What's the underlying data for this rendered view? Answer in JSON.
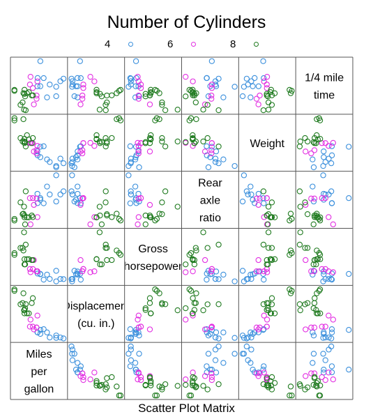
{
  "title": "Number of Cylinders",
  "subtitle": "Scatter Plot Matrix",
  "legend": [
    {
      "label": "4",
      "color": "#3a8fdc"
    },
    {
      "label": "6",
      "color": "#e22ee2"
    },
    {
      "label": "8",
      "color": "#1f7a1f"
    }
  ],
  "chart_data": {
    "type": "scatter",
    "title": "Number of Cylinders",
    "subtitle": "Scatter Plot Matrix",
    "variables": [
      {
        "key": "mpg",
        "label": [
          "Miles",
          "per",
          "gallon"
        ]
      },
      {
        "key": "disp",
        "label": [
          "Displacement",
          "(cu. in.)"
        ]
      },
      {
        "key": "hp",
        "label": [
          "Gross",
          "horsepower"
        ]
      },
      {
        "key": "drat",
        "label": [
          "Rear",
          "axle",
          "ratio"
        ]
      },
      {
        "key": "wt",
        "label": [
          "Weight"
        ]
      },
      {
        "key": "qsec",
        "label": [
          "1/4 mile",
          "time"
        ]
      }
    ],
    "groups": [
      "4",
      "6",
      "8"
    ],
    "grid": false,
    "legend_position": "top",
    "series": [
      {
        "name": "4",
        "cyl": 4,
        "color": "#3a8fdc",
        "points": [
          {
            "mpg": 22.8,
            "disp": 108.0,
            "hp": 93,
            "drat": 3.85,
            "wt": 2.32,
            "qsec": 18.61
          },
          {
            "mpg": 24.4,
            "disp": 146.7,
            "hp": 62,
            "drat": 3.69,
            "wt": 3.19,
            "qsec": 20.0
          },
          {
            "mpg": 22.8,
            "disp": 140.8,
            "hp": 95,
            "drat": 3.92,
            "wt": 3.15,
            "qsec": 22.9
          },
          {
            "mpg": 32.4,
            "disp": 78.7,
            "hp": 66,
            "drat": 4.08,
            "wt": 2.2,
            "qsec": 19.47
          },
          {
            "mpg": 30.4,
            "disp": 75.7,
            "hp": 52,
            "drat": 4.93,
            "wt": 1.615,
            "qsec": 18.52
          },
          {
            "mpg": 33.9,
            "disp": 71.1,
            "hp": 65,
            "drat": 4.22,
            "wt": 1.835,
            "qsec": 19.9
          },
          {
            "mpg": 21.5,
            "disp": 120.1,
            "hp": 97,
            "drat": 3.7,
            "wt": 2.465,
            "qsec": 20.01
          },
          {
            "mpg": 27.3,
            "disp": 79.0,
            "hp": 66,
            "drat": 4.08,
            "wt": 1.935,
            "qsec": 18.9
          },
          {
            "mpg": 26.0,
            "disp": 120.3,
            "hp": 91,
            "drat": 4.43,
            "wt": 2.14,
            "qsec": 16.7
          },
          {
            "mpg": 30.4,
            "disp": 95.1,
            "hp": 113,
            "drat": 3.77,
            "wt": 1.513,
            "qsec": 16.9
          },
          {
            "mpg": 21.4,
            "disp": 121.0,
            "hp": 109,
            "drat": 4.11,
            "wt": 2.78,
            "qsec": 18.6
          }
        ]
      },
      {
        "name": "6",
        "cyl": 6,
        "color": "#e22ee2",
        "points": [
          {
            "mpg": 21.0,
            "disp": 160.0,
            "hp": 110,
            "drat": 3.9,
            "wt": 2.62,
            "qsec": 16.46
          },
          {
            "mpg": 21.0,
            "disp": 160.0,
            "hp": 110,
            "drat": 3.9,
            "wt": 2.875,
            "qsec": 17.02
          },
          {
            "mpg": 21.4,
            "disp": 258.0,
            "hp": 110,
            "drat": 3.08,
            "wt": 3.215,
            "qsec": 19.44
          },
          {
            "mpg": 18.1,
            "disp": 225.0,
            "hp": 105,
            "drat": 2.76,
            "wt": 3.46,
            "qsec": 20.22
          },
          {
            "mpg": 19.2,
            "disp": 167.6,
            "hp": 123,
            "drat": 3.92,
            "wt": 3.44,
            "qsec": 18.3
          },
          {
            "mpg": 17.8,
            "disp": 167.6,
            "hp": 123,
            "drat": 3.92,
            "wt": 3.44,
            "qsec": 18.9
          },
          {
            "mpg": 19.7,
            "disp": 145.0,
            "hp": 175,
            "drat": 3.62,
            "wt": 2.77,
            "qsec": 15.5
          }
        ]
      },
      {
        "name": "8",
        "cyl": 8,
        "color": "#1f7a1f",
        "points": [
          {
            "mpg": 18.7,
            "disp": 360.0,
            "hp": 175,
            "drat": 3.15,
            "wt": 3.44,
            "qsec": 17.02
          },
          {
            "mpg": 14.3,
            "disp": 360.0,
            "hp": 245,
            "drat": 3.21,
            "wt": 3.57,
            "qsec": 15.84
          },
          {
            "mpg": 16.4,
            "disp": 275.8,
            "hp": 180,
            "drat": 3.07,
            "wt": 4.07,
            "qsec": 17.4
          },
          {
            "mpg": 17.3,
            "disp": 275.8,
            "hp": 180,
            "drat": 3.07,
            "wt": 3.73,
            "qsec": 17.6
          },
          {
            "mpg": 15.2,
            "disp": 275.8,
            "hp": 180,
            "drat": 3.07,
            "wt": 3.78,
            "qsec": 18.0
          },
          {
            "mpg": 10.4,
            "disp": 472.0,
            "hp": 205,
            "drat": 2.93,
            "wt": 5.25,
            "qsec": 17.98
          },
          {
            "mpg": 10.4,
            "disp": 460.0,
            "hp": 215,
            "drat": 3.0,
            "wt": 5.424,
            "qsec": 17.82
          },
          {
            "mpg": 14.7,
            "disp": 440.0,
            "hp": 230,
            "drat": 3.23,
            "wt": 5.345,
            "qsec": 17.42
          },
          {
            "mpg": 15.5,
            "disp": 318.0,
            "hp": 150,
            "drat": 2.76,
            "wt": 3.52,
            "qsec": 16.87
          },
          {
            "mpg": 15.2,
            "disp": 304.0,
            "hp": 150,
            "drat": 3.15,
            "wt": 3.435,
            "qsec": 17.3
          },
          {
            "mpg": 13.3,
            "disp": 350.0,
            "hp": 245,
            "drat": 3.73,
            "wt": 3.84,
            "qsec": 15.41
          },
          {
            "mpg": 19.2,
            "disp": 400.0,
            "hp": 175,
            "drat": 3.08,
            "wt": 3.845,
            "qsec": 17.05
          },
          {
            "mpg": 15.8,
            "disp": 351.0,
            "hp": 264,
            "drat": 4.22,
            "wt": 3.17,
            "qsec": 14.5
          },
          {
            "mpg": 15.0,
            "disp": 301.0,
            "hp": 335,
            "drat": 3.54,
            "wt": 3.57,
            "qsec": 14.6
          }
        ]
      }
    ]
  }
}
